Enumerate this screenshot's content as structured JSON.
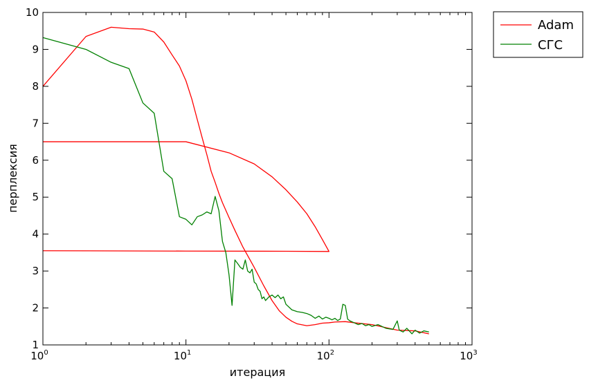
{
  "chart_data": {
    "type": "line",
    "xscale": "log",
    "xlabel": "итерация",
    "ylabel": "перплексия",
    "xlim": [
      1,
      1000
    ],
    "ylim": [
      1,
      10
    ],
    "grid": false,
    "legend_placement": "outside-top-right",
    "x_ticks": [
      1,
      10,
      100,
      1000
    ],
    "x_tick_labels": [
      {
        "base": "10",
        "exp": "0"
      },
      {
        "base": "10",
        "exp": "1"
      },
      {
        "base": "10",
        "exp": "2"
      },
      {
        "base": "10",
        "exp": "3"
      }
    ],
    "y_ticks": [
      1,
      2,
      3,
      4,
      5,
      6,
      7,
      8,
      9,
      10
    ],
    "series": [
      {
        "name": "Adam",
        "color": "#ff0000",
        "segments": [
          [
            [
              1,
              8.0
            ],
            [
              2,
              9.35
            ],
            [
              3,
              9.6
            ],
            [
              4,
              9.56
            ],
            [
              5,
              9.55
            ],
            [
              6,
              9.47
            ],
            [
              7,
              9.2
            ],
            [
              8,
              8.85
            ],
            [
              9,
              8.55
            ],
            [
              10,
              8.15
            ],
            [
              11,
              7.65
            ],
            [
              12,
              7.1
            ],
            [
              13,
              6.6
            ],
            [
              14,
              6.15
            ],
            [
              15,
              5.7
            ],
            [
              16,
              5.4
            ],
            [
              17,
              5.1
            ],
            [
              18,
              4.85
            ],
            [
              20,
              4.45
            ],
            [
              22,
              4.1
            ],
            [
              25,
              3.65
            ],
            [
              30,
              3.1
            ],
            [
              35,
              2.6
            ],
            [
              40,
              2.2
            ],
            [
              45,
              1.92
            ],
            [
              50,
              1.75
            ],
            [
              55,
              1.64
            ],
            [
              60,
              1.57
            ],
            [
              70,
              1.52
            ],
            [
              80,
              1.55
            ],
            [
              90,
              1.59
            ],
            [
              100,
              1.6
            ],
            [
              110,
              1.62
            ],
            [
              130,
              1.63
            ],
            [
              150,
              1.6
            ],
            [
              200,
              1.55
            ],
            [
              300,
              1.4
            ],
            [
              400,
              1.38
            ],
            [
              500,
              1.3
            ]
          ],
          [
            [
              1,
              6.5
            ],
            [
              10,
              6.5
            ],
            [
              20,
              6.2
            ],
            [
              30,
              5.9
            ],
            [
              40,
              5.55
            ],
            [
              50,
              5.2
            ],
            [
              60,
              4.87
            ],
            [
              70,
              4.55
            ],
            [
              80,
              4.2
            ],
            [
              90,
              3.85
            ],
            [
              100,
              3.53
            ],
            [
              50,
              3.535
            ],
            [
              10,
              3.54
            ],
            [
              1,
              3.55
            ]
          ]
        ]
      },
      {
        "name": "СГС",
        "color": "#008000",
        "segments": [
          [
            [
              1,
              9.32
            ],
            [
              2,
              9.0
            ],
            [
              3,
              8.65
            ],
            [
              4,
              8.48
            ],
            [
              5,
              7.55
            ],
            [
              6,
              7.27
            ],
            [
              7,
              5.7
            ],
            [
              8,
              5.5
            ],
            [
              9,
              4.47
            ],
            [
              10,
              4.4
            ],
            [
              11,
              4.25
            ],
            [
              12,
              4.47
            ],
            [
              13,
              4.52
            ],
            [
              14,
              4.6
            ],
            [
              15,
              4.55
            ],
            [
              16,
              5.02
            ],
            [
              17,
              4.63
            ],
            [
              18,
              3.8
            ],
            [
              19,
              3.5
            ],
            [
              20,
              2.9
            ],
            [
              21,
              2.07
            ],
            [
              22,
              3.3
            ],
            [
              23,
              3.2
            ],
            [
              24,
              3.1
            ],
            [
              25,
              3.05
            ],
            [
              26,
              3.3
            ],
            [
              27,
              3.0
            ],
            [
              28,
              2.95
            ],
            [
              29,
              3.05
            ],
            [
              30,
              2.7
            ],
            [
              31,
              2.65
            ],
            [
              32,
              2.5
            ],
            [
              33,
              2.45
            ],
            [
              34,
              2.25
            ],
            [
              35,
              2.3
            ],
            [
              36,
              2.2
            ],
            [
              38,
              2.3
            ],
            [
              40,
              2.35
            ],
            [
              42,
              2.28
            ],
            [
              44,
              2.35
            ],
            [
              46,
              2.25
            ],
            [
              48,
              2.3
            ],
            [
              50,
              2.1
            ],
            [
              55,
              1.95
            ],
            [
              60,
              1.9
            ],
            [
              65,
              1.88
            ],
            [
              70,
              1.85
            ],
            [
              75,
              1.8
            ],
            [
              80,
              1.72
            ],
            [
              85,
              1.78
            ],
            [
              90,
              1.7
            ],
            [
              95,
              1.75
            ],
            [
              100,
              1.72
            ],
            [
              105,
              1.68
            ],
            [
              110,
              1.72
            ],
            [
              115,
              1.66
            ],
            [
              120,
              1.7
            ],
            [
              125,
              2.1
            ],
            [
              130,
              2.07
            ],
            [
              135,
              1.7
            ],
            [
              140,
              1.65
            ],
            [
              150,
              1.6
            ],
            [
              160,
              1.55
            ],
            [
              170,
              1.58
            ],
            [
              180,
              1.52
            ],
            [
              190,
              1.55
            ],
            [
              200,
              1.5
            ],
            [
              220,
              1.55
            ],
            [
              250,
              1.45
            ],
            [
              280,
              1.42
            ],
            [
              300,
              1.65
            ],
            [
              310,
              1.4
            ],
            [
              330,
              1.35
            ],
            [
              350,
              1.45
            ],
            [
              380,
              1.3
            ],
            [
              400,
              1.4
            ],
            [
              430,
              1.32
            ],
            [
              460,
              1.38
            ],
            [
              500,
              1.35
            ]
          ]
        ]
      }
    ]
  }
}
